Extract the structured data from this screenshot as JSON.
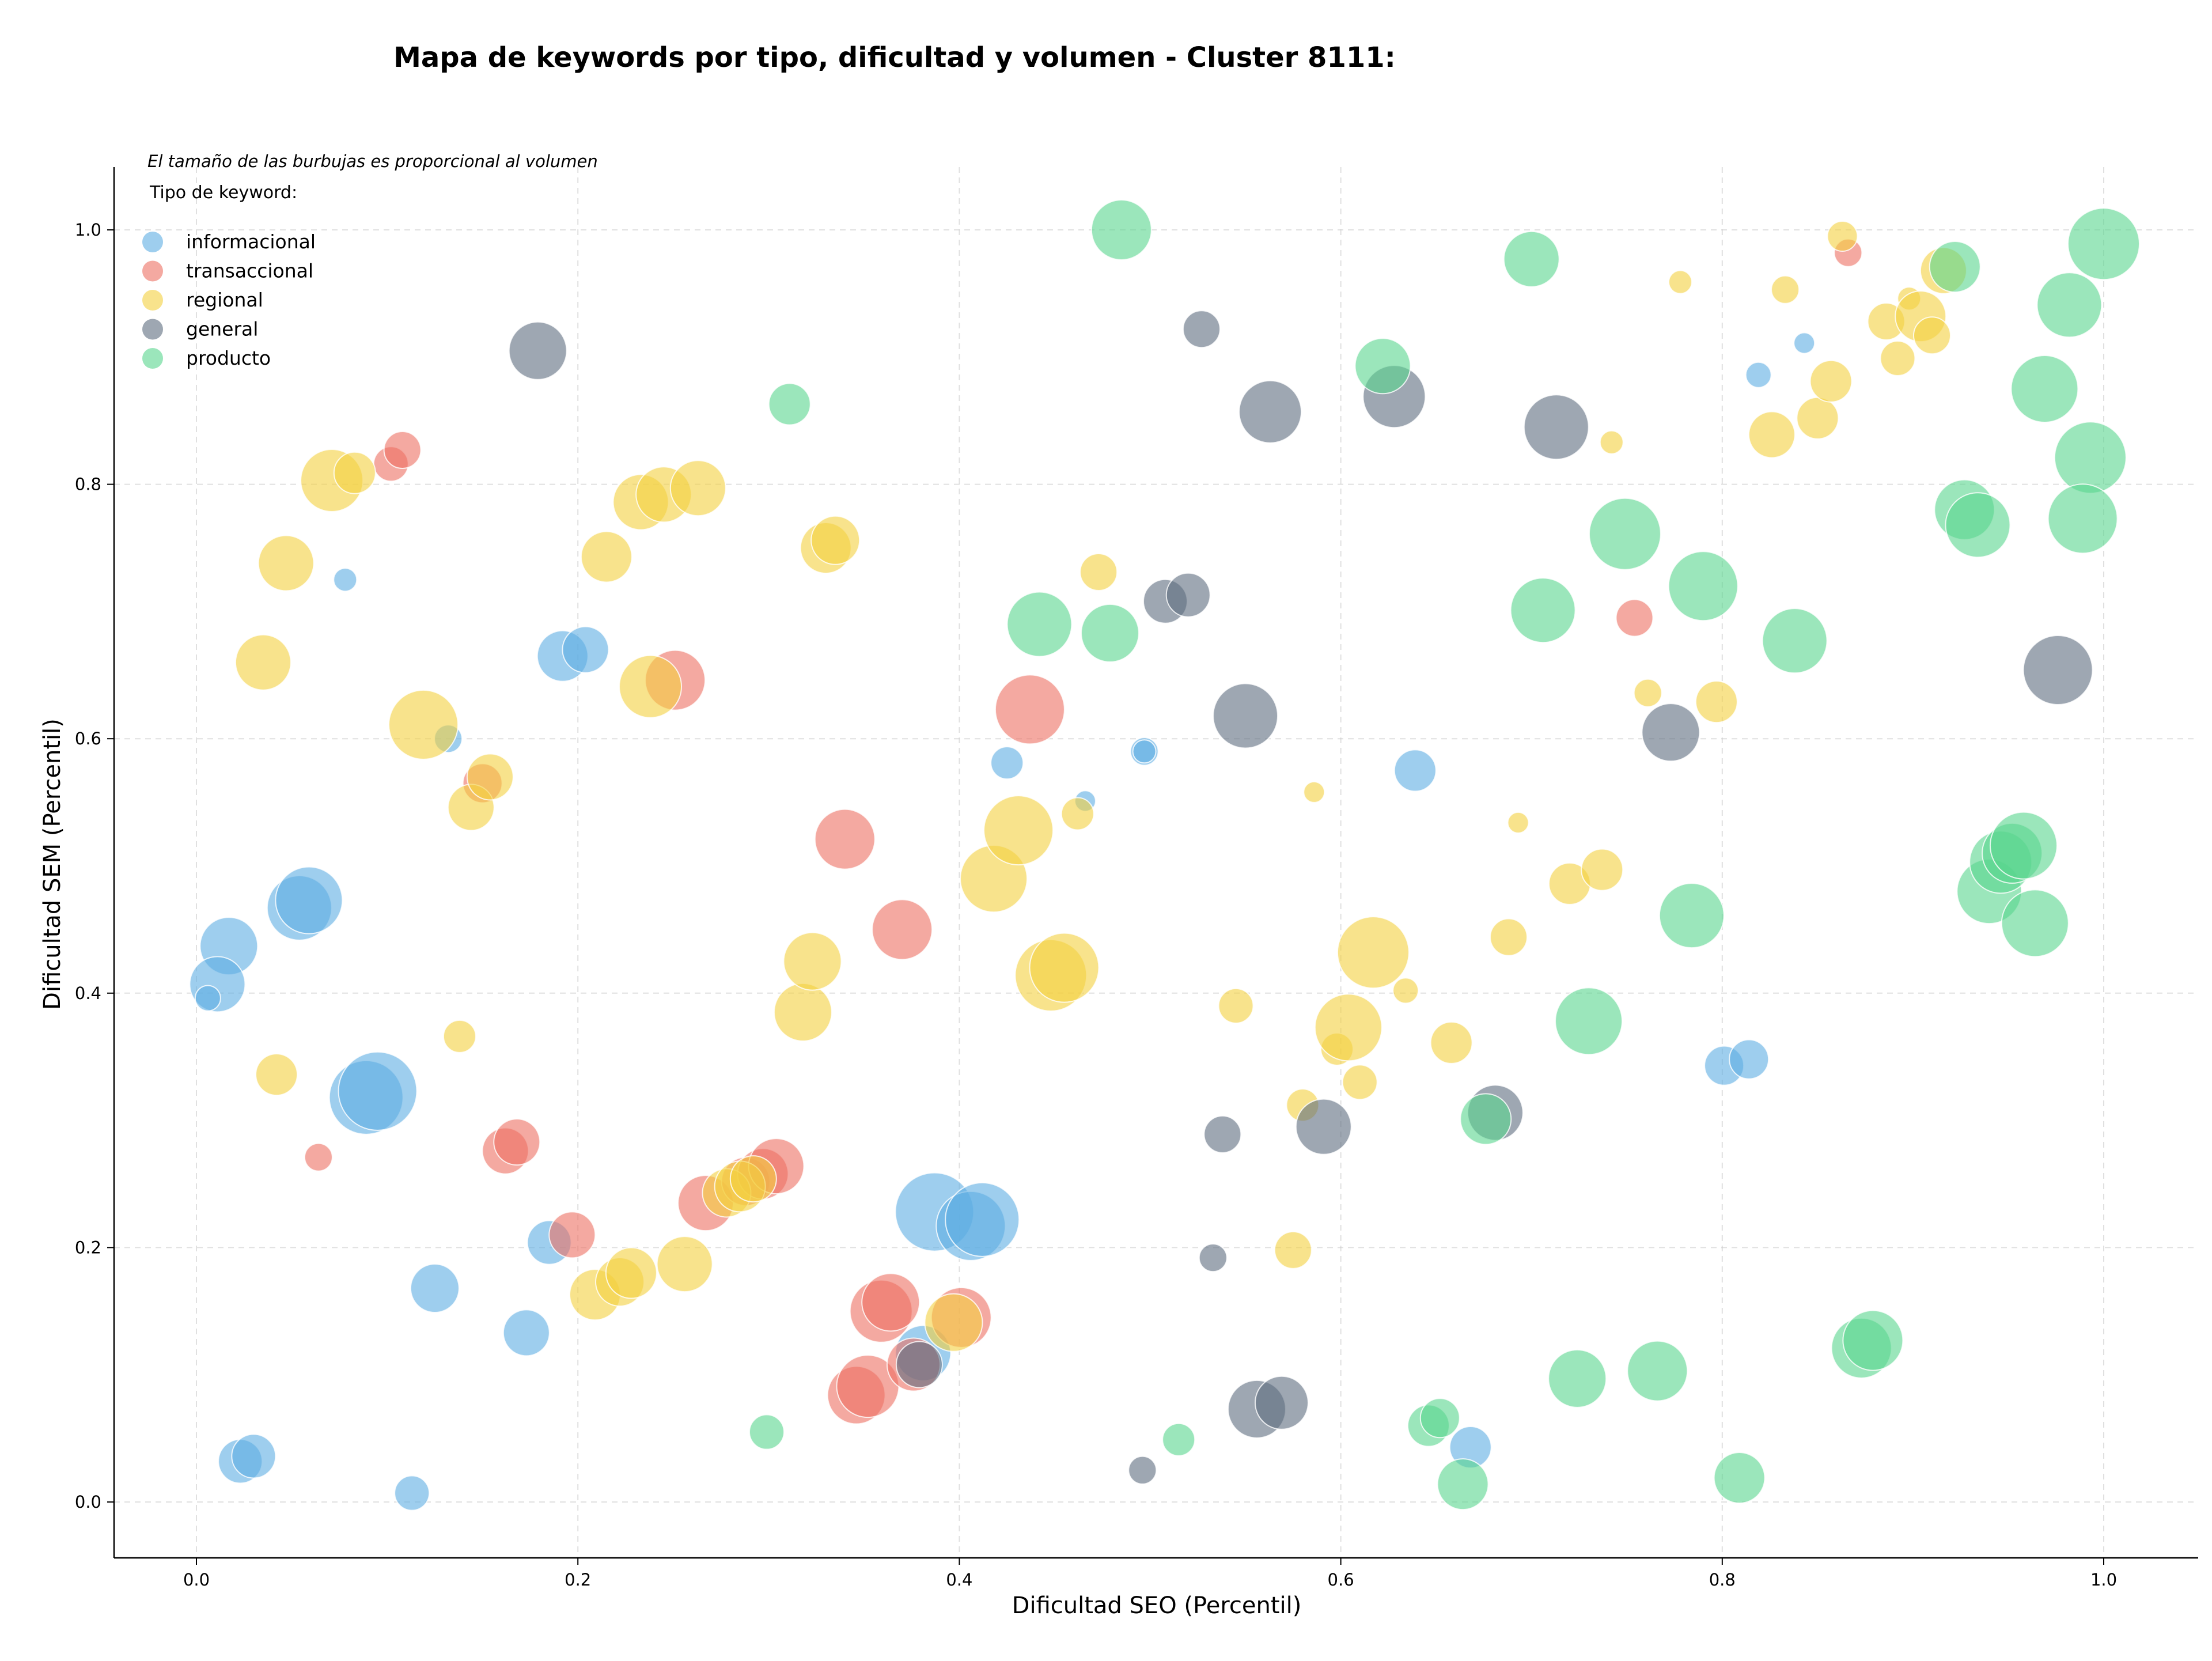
{
  "chart_data": {
    "type": "scatter",
    "title": "Mapa de keywords por tipo, dificultad y volumen - Cluster 8111:",
    "xlabel": "Dificultad SEO (Percentil)",
    "ylabel": "Dificultad SEM (Percentil)",
    "xlim": [
      -0.04,
      1.05
    ],
    "ylim": [
      -0.04,
      1.05
    ],
    "xticks": [
      "0.0",
      "0.2",
      "0.4",
      "0.6",
      "0.8",
      "1.0"
    ],
    "yticks": [
      "0.0",
      "0.2",
      "0.4",
      "0.6",
      "0.8",
      "1.0"
    ],
    "grid": true,
    "annotation": "El tamaño de las burbujas es proporcional al volumen",
    "legend_title": "Tipo de keyword:",
    "legend_position": "top-left",
    "series": [
      {
        "name": "informacional",
        "color": "#5dade2",
        "points": [
          [
            0.078,
            0.725,
            1
          ],
          [
            0.132,
            0.6,
            1.2
          ],
          [
            0.192,
            0.665,
            2.2
          ],
          [
            0.204,
            0.67,
            2.0
          ],
          [
            0.017,
            0.437,
            2.5
          ],
          [
            0.011,
            0.407,
            2.4
          ],
          [
            0.006,
            0.396,
            1.1
          ],
          [
            0.054,
            0.467,
            2.8
          ],
          [
            0.059,
            0.473,
            2.9
          ],
          [
            0.089,
            0.318,
            3.2
          ],
          [
            0.095,
            0.323,
            3.4
          ],
          [
            0.185,
            0.204,
            1.9
          ],
          [
            0.125,
            0.168,
            2.1
          ],
          [
            0.173,
            0.133,
            2.0
          ],
          [
            0.023,
            0.032,
            1.9
          ],
          [
            0.03,
            0.036,
            1.9
          ],
          [
            0.113,
            0.007,
            1.5
          ],
          [
            0.387,
            0.228,
            3.4
          ],
          [
            0.406,
            0.217,
            3.0
          ],
          [
            0.412,
            0.222,
            3.2
          ],
          [
            0.381,
            0.117,
            2.4
          ],
          [
            0.425,
            0.581,
            1.4
          ],
          [
            0.466,
            0.551,
            0.9
          ],
          [
            0.497,
            0.59,
            1.2
          ],
          [
            0.639,
            0.575,
            1.8
          ],
          [
            0.668,
            0.043,
            1.8
          ],
          [
            0.801,
            0.343,
            1.7
          ],
          [
            0.814,
            0.348,
            1.7
          ],
          [
            0.819,
            0.886,
            1.1
          ],
          [
            0.843,
            0.911,
            0.9
          ],
          [
            0.497,
            0.59,
            1.0
          ]
        ]
      },
      {
        "name": "transaccional",
        "color": "#ec7063",
        "points": [
          [
            0.102,
            0.816,
            1.5
          ],
          [
            0.108,
            0.827,
            1.6
          ],
          [
            0.15,
            0.565,
            1.7
          ],
          [
            0.064,
            0.271,
            1.2
          ],
          [
            0.162,
            0.276,
            2.0
          ],
          [
            0.168,
            0.283,
            2.0
          ],
          [
            0.197,
            0.21,
            2.0
          ],
          [
            0.251,
            0.646,
            2.6
          ],
          [
            0.34,
            0.521,
            2.6
          ],
          [
            0.37,
            0.45,
            2.6
          ],
          [
            0.437,
            0.623,
            3.0
          ],
          [
            0.267,
            0.235,
            2.4
          ],
          [
            0.288,
            0.252,
            2.1
          ],
          [
            0.297,
            0.258,
            2.2
          ],
          [
            0.304,
            0.264,
            2.4
          ],
          [
            0.346,
            0.084,
            2.5
          ],
          [
            0.352,
            0.091,
            2.7
          ],
          [
            0.359,
            0.15,
            2.7
          ],
          [
            0.364,
            0.157,
            2.5
          ],
          [
            0.376,
            0.108,
            2.3
          ],
          [
            0.401,
            0.145,
            2.6
          ],
          [
            0.754,
            0.695,
            1.6
          ],
          [
            0.866,
            0.982,
            1.2
          ]
        ]
      },
      {
        "name": "regional",
        "color": "#f4d03f",
        "points": [
          [
            0.071,
            0.803,
            2.7
          ],
          [
            0.083,
            0.809,
            1.8
          ],
          [
            0.047,
            0.738,
            2.4
          ],
          [
            0.035,
            0.66,
            2.4
          ],
          [
            0.119,
            0.611,
            3.0
          ],
          [
            0.144,
            0.546,
            2.0
          ],
          [
            0.154,
            0.57,
            2.0
          ],
          [
            0.138,
            0.366,
            1.4
          ],
          [
            0.042,
            0.336,
            1.8
          ],
          [
            0.215,
            0.743,
            2.2
          ],
          [
            0.233,
            0.786,
            2.4
          ],
          [
            0.245,
            0.792,
            2.4
          ],
          [
            0.263,
            0.797,
            2.4
          ],
          [
            0.238,
            0.641,
            2.7
          ],
          [
            0.33,
            0.75,
            2.2
          ],
          [
            0.335,
            0.756,
            2.1
          ],
          [
            0.209,
            0.163,
            2.2
          ],
          [
            0.222,
            0.173,
            2.1
          ],
          [
            0.228,
            0.18,
            2.2
          ],
          [
            0.256,
            0.187,
            2.4
          ],
          [
            0.278,
            0.243,
            2.1
          ],
          [
            0.285,
            0.248,
            2.2
          ],
          [
            0.292,
            0.254,
            2.0
          ],
          [
            0.318,
            0.385,
            2.5
          ],
          [
            0.323,
            0.425,
            2.5
          ],
          [
            0.397,
            0.141,
            2.5
          ],
          [
            0.418,
            0.49,
            2.9
          ],
          [
            0.431,
            0.528,
            3.0
          ],
          [
            0.448,
            0.414,
            3.1
          ],
          [
            0.455,
            0.42,
            3.0
          ],
          [
            0.473,
            0.731,
            1.6
          ],
          [
            0.462,
            0.541,
            1.4
          ],
          [
            0.545,
            0.39,
            1.5
          ],
          [
            0.586,
            0.558,
            0.9
          ],
          [
            0.575,
            0.198,
            1.6
          ],
          [
            0.58,
            0.312,
            1.4
          ],
          [
            0.598,
            0.356,
            1.4
          ],
          [
            0.604,
            0.373,
            2.9
          ],
          [
            0.61,
            0.33,
            1.5
          ],
          [
            0.617,
            0.432,
            3.1
          ],
          [
            0.634,
            0.402,
            1.1
          ],
          [
            0.658,
            0.361,
            1.8
          ],
          [
            0.688,
            0.444,
            1.6
          ],
          [
            0.693,
            0.534,
            0.9
          ],
          [
            0.72,
            0.486,
            1.8
          ],
          [
            0.737,
            0.497,
            1.8
          ],
          [
            0.742,
            0.833,
            1.0
          ],
          [
            0.761,
            0.636,
            1.2
          ],
          [
            0.778,
            0.959,
            1.0
          ],
          [
            0.797,
            0.629,
            1.8
          ],
          [
            0.826,
            0.839,
            2.0
          ],
          [
            0.833,
            0.953,
            1.2
          ],
          [
            0.85,
            0.852,
            1.8
          ],
          [
            0.857,
            0.881,
            1.8
          ],
          [
            0.863,
            0.995,
            1.3
          ],
          [
            0.886,
            0.928,
            1.6
          ],
          [
            0.892,
            0.899,
            1.5
          ],
          [
            0.898,
            0.946,
            1.0
          ],
          [
            0.904,
            0.932,
            2.2
          ],
          [
            0.91,
            0.917,
            1.6
          ],
          [
            0.916,
            0.968,
            2.0
          ]
        ]
      },
      {
        "name": "general",
        "color": "#5d6d7e",
        "points": [
          [
            0.179,
            0.905,
            2.5
          ],
          [
            0.527,
            0.922,
            1.6
          ],
          [
            0.563,
            0.857,
            2.7
          ],
          [
            0.628,
            0.869,
            2.7
          ],
          [
            0.713,
            0.845,
            2.8
          ],
          [
            0.508,
            0.708,
            1.9
          ],
          [
            0.52,
            0.713,
            1.9
          ],
          [
            0.55,
            0.618,
            2.8
          ],
          [
            0.773,
            0.605,
            2.5
          ],
          [
            0.976,
            0.654,
            3.0
          ],
          [
            0.538,
            0.289,
            1.6
          ],
          [
            0.591,
            0.295,
            2.4
          ],
          [
            0.681,
            0.306,
            2.4
          ],
          [
            0.533,
            0.192,
            1.2
          ],
          [
            0.496,
            0.025,
            1.2
          ],
          [
            0.556,
            0.073,
            2.5
          ],
          [
            0.569,
            0.078,
            2.3
          ],
          [
            0.379,
            0.108,
            2.0
          ]
        ]
      },
      {
        "name": "producto",
        "color": "#58d68d",
        "points": [
          [
            0.485,
            1.0,
            2.6
          ],
          [
            0.311,
            0.863,
            1.8
          ],
          [
            0.442,
            0.69,
            2.8
          ],
          [
            0.479,
            0.683,
            2.5
          ],
          [
            0.622,
            0.893,
            2.4
          ],
          [
            0.7,
            0.977,
            2.4
          ],
          [
            0.706,
            0.701,
            2.8
          ],
          [
            0.749,
            0.761,
            3.1
          ],
          [
            0.79,
            0.72,
            3.0
          ],
          [
            0.838,
            0.677,
            2.8
          ],
          [
            0.922,
            0.971,
            2.2
          ],
          [
            0.982,
            0.941,
            2.8
          ],
          [
            0.969,
            0.875,
            2.9
          ],
          [
            0.993,
            0.821,
            3.1
          ],
          [
            0.927,
            0.78,
            2.6
          ],
          [
            0.934,
            0.768,
            2.8
          ],
          [
            0.989,
            0.773,
            3.0
          ],
          [
            1.0,
            0.989,
            3.1
          ],
          [
            0.784,
            0.461,
            2.8
          ],
          [
            0.73,
            0.378,
            2.9
          ],
          [
            0.94,
            0.48,
            2.8
          ],
          [
            0.946,
            0.503,
            2.7
          ],
          [
            0.952,
            0.51,
            2.6
          ],
          [
            0.958,
            0.516,
            2.9
          ],
          [
            0.964,
            0.455,
            2.9
          ],
          [
            0.676,
            0.301,
            2.2
          ],
          [
            0.724,
            0.097,
            2.5
          ],
          [
            0.766,
            0.103,
            2.6
          ],
          [
            0.873,
            0.121,
            2.6
          ],
          [
            0.879,
            0.127,
            2.6
          ],
          [
            0.809,
            0.019,
            2.2
          ],
          [
            0.664,
            0.014,
            2.2
          ],
          [
            0.646,
            0.06,
            1.8
          ],
          [
            0.652,
            0.066,
            1.7
          ],
          [
            0.515,
            0.049,
            1.4
          ],
          [
            0.299,
            0.055,
            1.5
          ]
        ]
      }
    ]
  }
}
